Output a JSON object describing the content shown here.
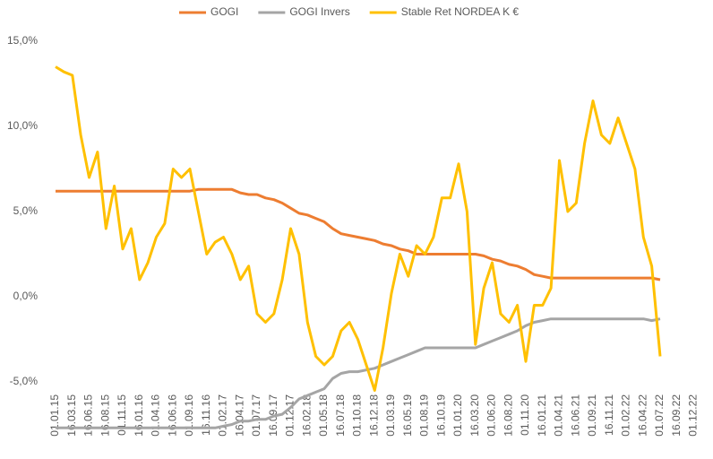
{
  "chart_data": {
    "type": "line",
    "categories": [
      "01.01.15",
      null,
      "16.03.15",
      null,
      "16.06.15",
      null,
      "16.08.15",
      null,
      "01.11.15",
      null,
      "16.01.16",
      null,
      "01.04.16",
      null,
      "16.06.16",
      null,
      "01.09.16",
      null,
      "16.11.16",
      null,
      "01.02.17",
      null,
      "16.04.17",
      null,
      "01.07.17",
      null,
      "16.09.17",
      null,
      "01.12.17",
      null,
      "16.02.18",
      null,
      "01.05.18",
      null,
      "16.07.18",
      null,
      "01.10.18",
      null,
      "16.12.18",
      null,
      "01.03.19",
      null,
      "16.05.19",
      null,
      "01.08.19",
      null,
      "16.10.19",
      null,
      "01.01.20",
      null,
      "16.03.20",
      null,
      "01.06.20",
      null,
      "16.08.20",
      null,
      "01.11.20",
      null,
      "16.01.21",
      null,
      "01.04.21",
      null,
      "16.06.21",
      null,
      "01.09.21",
      null,
      "16.11.21",
      null,
      "01.02.22",
      null,
      "16.04.22",
      null,
      "01.07.22",
      null,
      "16.09.22",
      null,
      "01.12.22",
      null
    ],
    "series": [
      {
        "name": "GOGI",
        "color": "#ed7d31",
        "values": [
          6.2,
          6.2,
          6.2,
          6.2,
          6.2,
          6.2,
          6.2,
          6.2,
          6.2,
          6.2,
          6.2,
          6.2,
          6.2,
          6.2,
          6.2,
          6.2,
          6.2,
          6.3,
          6.3,
          6.3,
          6.3,
          6.3,
          6.1,
          6.0,
          6.0,
          5.8,
          5.7,
          5.5,
          5.2,
          4.9,
          4.8,
          4.6,
          4.4,
          4.0,
          3.7,
          3.6,
          3.5,
          3.4,
          3.3,
          3.1,
          3.0,
          2.8,
          2.7,
          2.5,
          2.5,
          2.5,
          2.5,
          2.5,
          2.5,
          2.5,
          2.5,
          2.4,
          2.2,
          2.1,
          1.9,
          1.8,
          1.6,
          1.3,
          1.2,
          1.1,
          1.1,
          1.1,
          1.1,
          1.1,
          1.1,
          1.1,
          1.1,
          1.1,
          1.1,
          1.1,
          1.1,
          1.1,
          1.0,
          null,
          null,
          null,
          null,
          null
        ]
      },
      {
        "name": "GOGI Invers",
        "color": "#a5a5a5",
        "values": [
          -7.7,
          -7.7,
          -7.7,
          -7.7,
          -7.7,
          -7.7,
          -7.7,
          -7.7,
          -7.7,
          -7.7,
          -7.7,
          -7.7,
          -7.7,
          -7.7,
          -7.7,
          -7.7,
          -7.7,
          -7.7,
          -7.7,
          -7.7,
          -7.6,
          -7.5,
          -7.3,
          -7.3,
          -7.2,
          -7.2,
          -7.0,
          -6.9,
          -6.5,
          -6.0,
          -5.8,
          -5.6,
          -5.4,
          -4.8,
          -4.5,
          -4.4,
          -4.4,
          -4.3,
          -4.2,
          -4.0,
          -3.8,
          -3.6,
          -3.4,
          -3.2,
          -3.0,
          -3.0,
          -3.0,
          -3.0,
          -3.0,
          -3.0,
          -3.0,
          -2.8,
          -2.6,
          -2.4,
          -2.2,
          -2.0,
          -1.7,
          -1.5,
          -1.4,
          -1.3,
          -1.3,
          -1.3,
          -1.3,
          -1.3,
          -1.3,
          -1.3,
          -1.3,
          -1.3,
          -1.3,
          -1.3,
          -1.3,
          -1.4,
          -1.3,
          null,
          null,
          null,
          null,
          null
        ]
      },
      {
        "name": "Stable Ret NORDEA K €",
        "color": "#ffc000",
        "values": [
          13.5,
          13.2,
          13.0,
          9.5,
          7.0,
          8.5,
          4.0,
          6.5,
          2.8,
          4.0,
          1.0,
          2.0,
          3.5,
          4.3,
          7.5,
          7.0,
          7.5,
          5.0,
          2.5,
          3.2,
          3.5,
          2.5,
          1.0,
          1.8,
          -1.0,
          -1.5,
          -1.0,
          1.0,
          4.0,
          2.5,
          -1.5,
          -3.5,
          -4.0,
          -3.5,
          -2.0,
          -1.5,
          -2.5,
          -4.0,
          -5.5,
          -3.0,
          0.2,
          2.5,
          1.2,
          3.0,
          2.5,
          3.5,
          5.8,
          5.8,
          7.8,
          5.0,
          -2.8,
          0.5,
          2.0,
          -1.0,
          -1.5,
          -0.5,
          -3.8,
          -0.5,
          -0.5,
          0.5,
          8.0,
          5.0,
          5.5,
          9.0,
          11.5,
          9.5,
          9.0,
          10.5,
          9.0,
          7.5,
          3.5,
          1.8,
          -3.5,
          null,
          null,
          null,
          null,
          null
        ]
      }
    ],
    "ylim": [
      -8,
      15
    ],
    "yticks": [
      {
        "value": -5,
        "label": "-5,0%"
      },
      {
        "value": 0,
        "label": "0,0%"
      },
      {
        "value": 5,
        "label": "5,0%"
      },
      {
        "value": 10,
        "label": "10,0%"
      },
      {
        "value": 15,
        "label": "15,0%"
      }
    ],
    "grid": false,
    "legend": "top"
  }
}
